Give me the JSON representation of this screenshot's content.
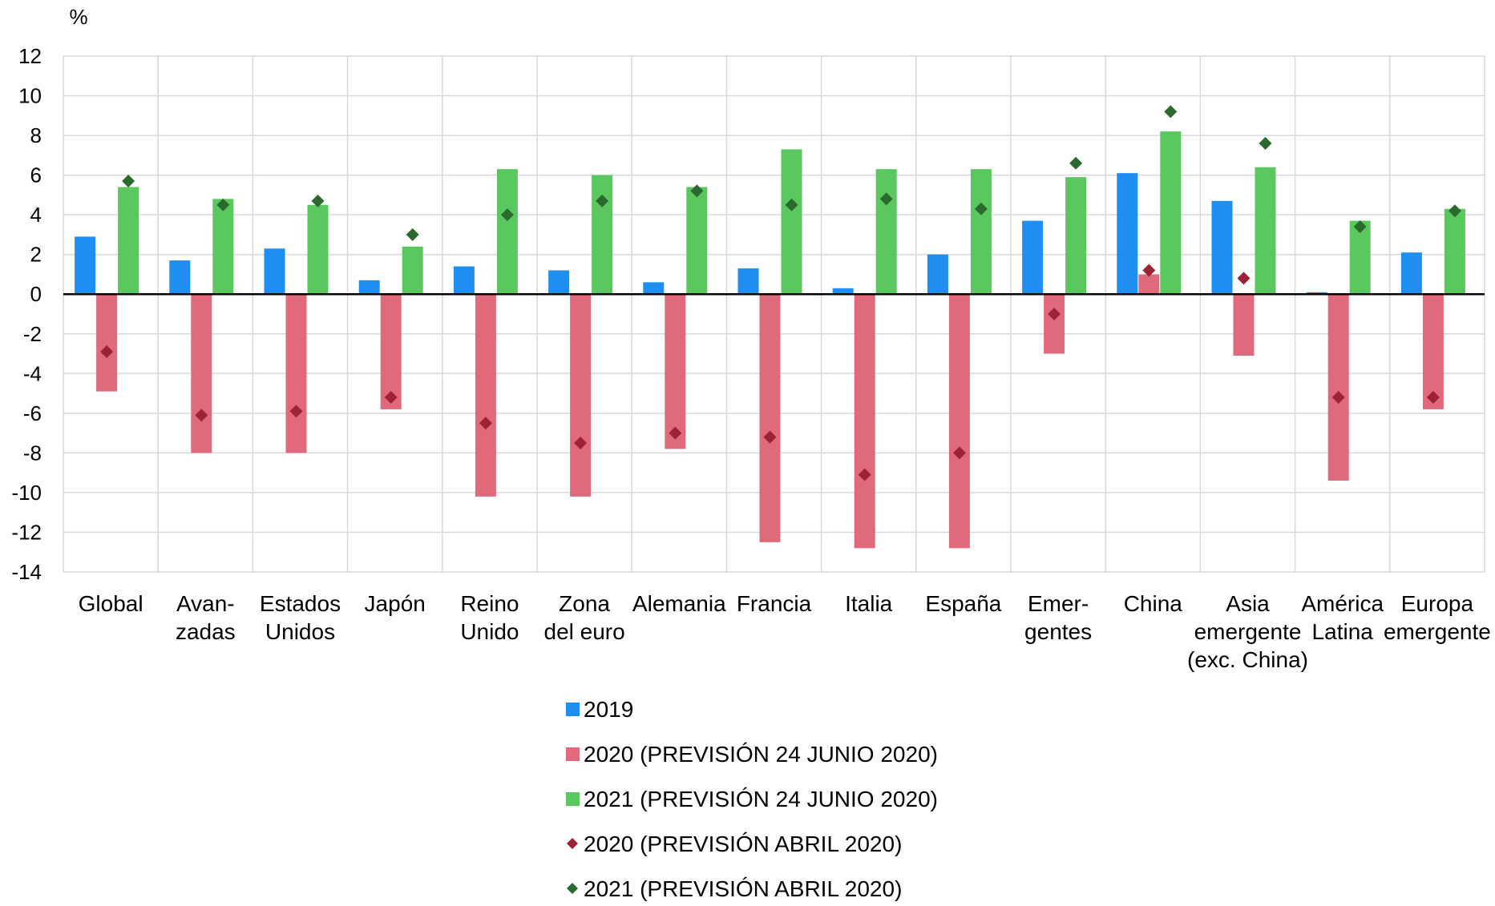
{
  "chart_data": {
    "type": "bar",
    "ylabel": "%",
    "ylim": [
      -14,
      12
    ],
    "yticks": [
      12,
      10,
      8,
      6,
      4,
      2,
      0,
      -2,
      -4,
      -6,
      -8,
      -10,
      -12,
      -14
    ],
    "grid": true,
    "legend_position": "bottom",
    "categories": [
      [
        "Global"
      ],
      [
        "Avan-",
        "zadas"
      ],
      [
        "Estados",
        "Unidos"
      ],
      [
        "Japón"
      ],
      [
        "Reino",
        "Unido"
      ],
      [
        "Zona",
        "del euro"
      ],
      [
        "Alemania"
      ],
      [
        "Francia"
      ],
      [
        "Italia"
      ],
      [
        "España"
      ],
      [
        "Emer-",
        "gentes"
      ],
      [
        "China"
      ],
      [
        "Asia",
        "emergente",
        "(exc. China)"
      ],
      [
        "América",
        "Latina"
      ],
      [
        "Europa",
        "emergente"
      ]
    ],
    "series": [
      {
        "name": "2019",
        "kind": "bar",
        "color": "#1f8ef1",
        "values": [
          2.9,
          1.7,
          2.3,
          0.7,
          1.4,
          1.2,
          0.6,
          1.3,
          0.3,
          2.0,
          3.7,
          6.1,
          4.7,
          0.1,
          2.1
        ]
      },
      {
        "name": "2020 (PREVISIÓN 24 JUNIO 2020)",
        "kind": "bar",
        "color": "#e0697b",
        "values": [
          -4.9,
          -8.0,
          -8.0,
          -5.8,
          -10.2,
          -10.2,
          -7.8,
          -12.5,
          -12.8,
          -12.8,
          -3.0,
          1.0,
          -3.1,
          -9.4,
          -5.8
        ]
      },
      {
        "name": "2021 (PREVISIÓN 24 JUNIO 2020)",
        "kind": "bar",
        "color": "#5ac85f",
        "values": [
          5.4,
          4.8,
          4.5,
          2.4,
          6.3,
          6.0,
          5.4,
          7.3,
          6.3,
          6.3,
          5.9,
          8.2,
          6.4,
          3.7,
          4.3
        ]
      },
      {
        "name": "2020 (PREVISIÓN ABRIL 2020)",
        "kind": "marker",
        "color": "#9b2335",
        "values": [
          -2.9,
          -6.1,
          -5.9,
          -5.2,
          -6.5,
          -7.5,
          -7.0,
          -7.2,
          -9.1,
          -8.0,
          -1.0,
          1.2,
          0.8,
          -5.2,
          -5.2
        ]
      },
      {
        "name": "2021 (PREVISIÓN ABRIL 2020)",
        "kind": "marker",
        "color": "#2a6a2e",
        "values": [
          5.7,
          4.5,
          4.7,
          3.0,
          4.0,
          4.7,
          5.2,
          4.5,
          4.8,
          4.3,
          6.6,
          9.2,
          7.6,
          3.4,
          4.2
        ]
      }
    ]
  }
}
